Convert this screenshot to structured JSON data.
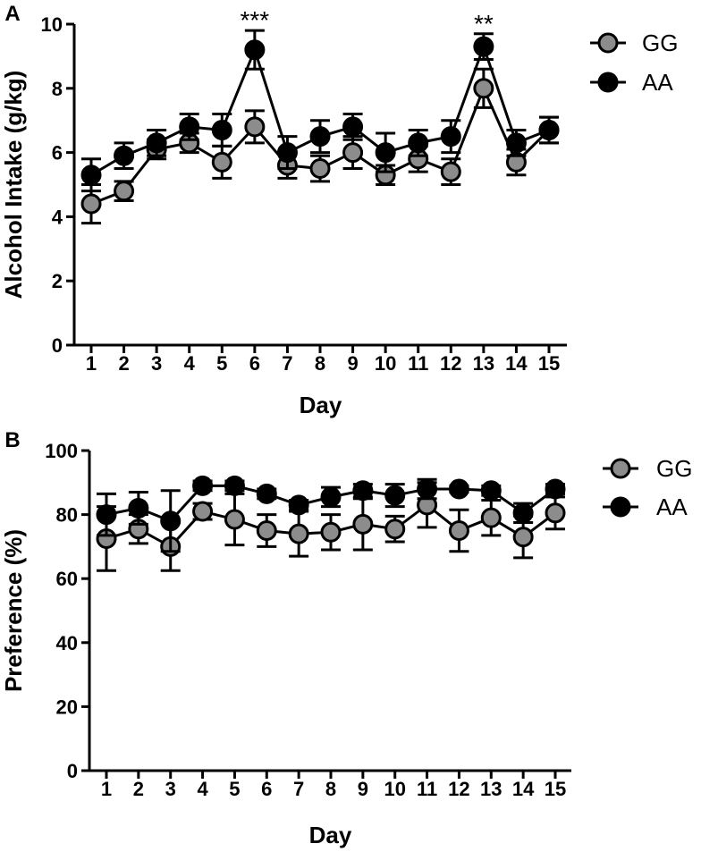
{
  "chart_data": [
    {
      "panel_label": "A",
      "type": "line",
      "xlabel": "Day",
      "ylabel": "Alcohol Intake (g/kg)",
      "categories": [
        "1",
        "2",
        "3",
        "4",
        "5",
        "6",
        "7",
        "8",
        "9",
        "10",
        "11",
        "12",
        "13",
        "14",
        "15"
      ],
      "ylim": [
        0,
        10
      ],
      "yticks": [
        "0",
        "2",
        "4",
        "6",
        "8",
        "10"
      ],
      "series": [
        {
          "name": "GG",
          "color": "#8c8c8c",
          "values": [
            4.4,
            4.8,
            6.1,
            6.3,
            5.7,
            6.8,
            5.6,
            5.5,
            6.0,
            5.3,
            5.8,
            5.4,
            8.0,
            5.7,
            6.7
          ],
          "errors": [
            0.6,
            0.3,
            0.3,
            0.3,
            0.5,
            0.5,
            0.4,
            0.4,
            0.5,
            0.3,
            0.4,
            0.4,
            0.6,
            0.4,
            0.4
          ]
        },
        {
          "name": "AA",
          "color": "#000000",
          "values": [
            5.3,
            5.9,
            6.3,
            6.8,
            6.7,
            9.2,
            6.0,
            6.5,
            6.8,
            6.0,
            6.3,
            6.5,
            9.3,
            6.3,
            6.7
          ],
          "errors": [
            0.5,
            0.4,
            0.4,
            0.4,
            0.5,
            0.6,
            0.5,
            0.5,
            0.4,
            0.6,
            0.4,
            0.5,
            0.4,
            0.4,
            0.4
          ]
        }
      ],
      "annotations": [
        {
          "text": "***",
          "category": "6",
          "y": 9.8
        },
        {
          "text": "**",
          "category": "13",
          "y": 9.7
        }
      ],
      "legend_position": "top-right"
    },
    {
      "panel_label": "B",
      "type": "line",
      "xlabel": "Day",
      "ylabel": "Preference (%)",
      "categories": [
        "1",
        "2",
        "3",
        "4",
        "5",
        "6",
        "7",
        "8",
        "9",
        "10",
        "11",
        "12",
        "13",
        "14",
        "15"
      ],
      "ylim": [
        0,
        100
      ],
      "yticks": [
        "0",
        "20",
        "40",
        "60",
        "80",
        "100"
      ],
      "series": [
        {
          "name": "GG",
          "color": "#8c8c8c",
          "values": [
            72.5,
            75.5,
            70,
            81,
            78.5,
            75,
            74,
            74.5,
            77,
            75.5,
            83,
            75,
            79,
            73,
            80.5
          ],
          "errors": [
            10,
            4.5,
            7.5,
            2.5,
            8,
            5,
            7,
            5.5,
            8,
            4,
            7,
            6.5,
            5.5,
            6.5,
            5
          ]
        },
        {
          "name": "AA",
          "color": "#000000",
          "values": [
            80,
            82,
            78,
            89,
            89,
            86.5,
            83,
            85.5,
            87.5,
            86,
            88,
            88,
            87.5,
            80.5,
            88
          ],
          "errors": [
            6.5,
            5,
            9.5,
            1.5,
            1.5,
            1.5,
            1.5,
            3,
            2,
            3.5,
            3,
            1,
            1.5,
            3,
            1.5
          ]
        }
      ],
      "legend_position": "top-right"
    }
  ]
}
